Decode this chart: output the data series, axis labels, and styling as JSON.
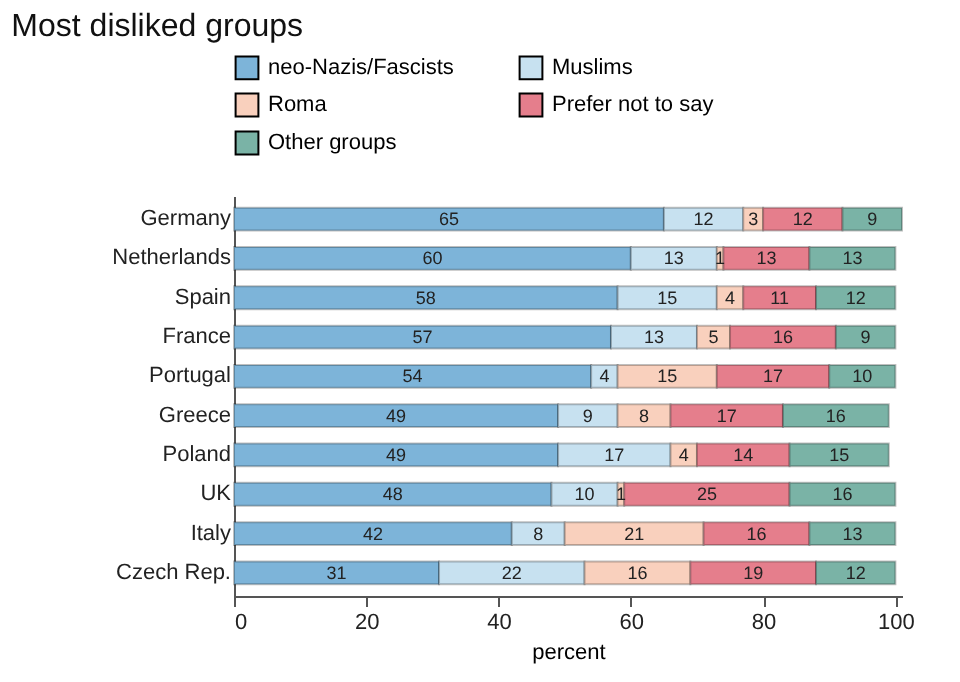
{
  "chart_data": {
    "type": "bar",
    "orientation": "horizontal",
    "stacked": true,
    "title": "Most disliked groups",
    "xlabel": "percent",
    "categories": [
      "Germany",
      "Netherlands",
      "Spain",
      "France",
      "Portugal",
      "Greece",
      "Poland",
      "UK",
      "Italy",
      "Czech Rep."
    ],
    "series": [
      {
        "name": "neo-Nazis/Fascists",
        "color": "#7db4d9",
        "values": [
          65,
          60,
          58,
          57,
          54,
          49,
          49,
          48,
          42,
          31
        ]
      },
      {
        "name": "Muslims",
        "color": "#c7e1f0",
        "values": [
          12,
          13,
          15,
          13,
          4,
          9,
          17,
          10,
          8,
          22
        ]
      },
      {
        "name": "Roma",
        "color": "#f9d0bd",
        "values": [
          3,
          1,
          4,
          5,
          15,
          8,
          4,
          1,
          21,
          16
        ]
      },
      {
        "name": "Prefer not to say",
        "color": "#e57e8c",
        "values": [
          12,
          13,
          11,
          16,
          17,
          17,
          14,
          25,
          16,
          19
        ]
      },
      {
        "name": "Other groups",
        "color": "#7ab3a6",
        "values": [
          9,
          13,
          12,
          9,
          10,
          16,
          15,
          16,
          13,
          12
        ]
      }
    ],
    "xlim": [
      0,
      101
    ],
    "xticks": [
      0,
      20,
      40,
      60,
      80,
      100
    ],
    "grid": false,
    "legend": "top left",
    "data_labels": true
  }
}
